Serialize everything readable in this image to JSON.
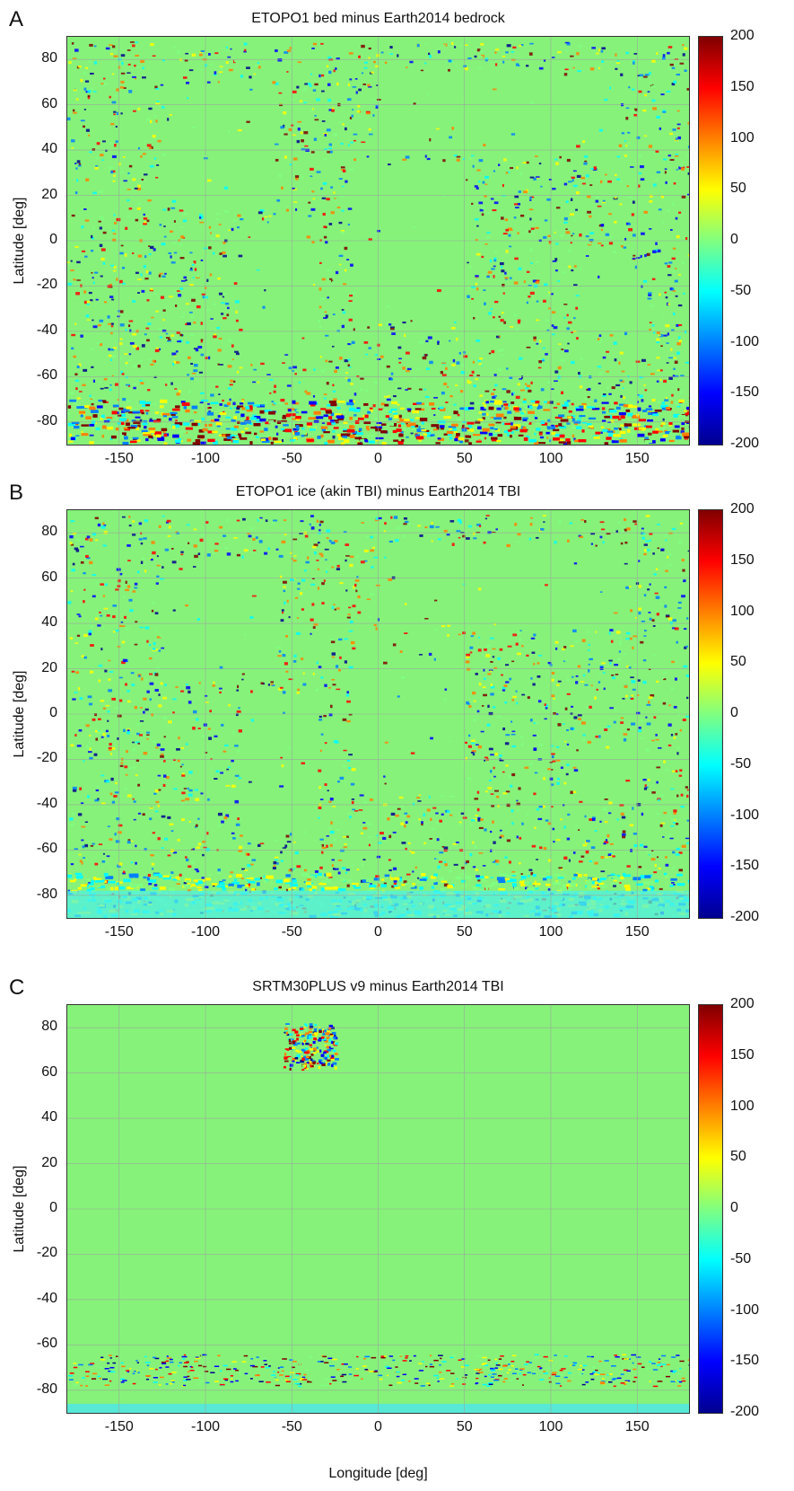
{
  "panels": [
    {
      "letter": "A",
      "title": "ETOPO1 bed minus Earth2014 bedrock",
      "variant": "busy"
    },
    {
      "letter": "B",
      "title": "ETOPO1 ice (akin TBI) minus Earth2014 TBI",
      "variant": "busy_ice"
    },
    {
      "letter": "C",
      "title": "SRTM30PLUS v9 minus Earth2014 TBI",
      "variant": "quiet"
    }
  ],
  "axes": {
    "ylabel": "Latitude [deg]",
    "xlabel": "Longitude [deg]",
    "yticks": [
      "80",
      "60",
      "40",
      "20",
      "0",
      "-20",
      "-40",
      "-60",
      "-80"
    ],
    "xticks": [
      "-150",
      "-100",
      "-50",
      "0",
      "50",
      "100",
      "150"
    ],
    "xlim": [
      -180,
      180
    ],
    "ylim": [
      -90,
      90
    ]
  },
  "colorbar": {
    "ticks": [
      "200",
      "150",
      "100",
      "50",
      "0",
      "-50",
      "-100",
      "-150",
      "-200"
    ],
    "range": [
      -200,
      200
    ],
    "colors": [
      "#00008f",
      "#0000ff",
      "#0080ff",
      "#00ffff",
      "#80ff80",
      "#ffff00",
      "#ff8000",
      "#ff0000",
      "#800000"
    ]
  },
  "colors": {
    "background_zero": "#86f27a",
    "grid": "#9aa89a"
  }
}
